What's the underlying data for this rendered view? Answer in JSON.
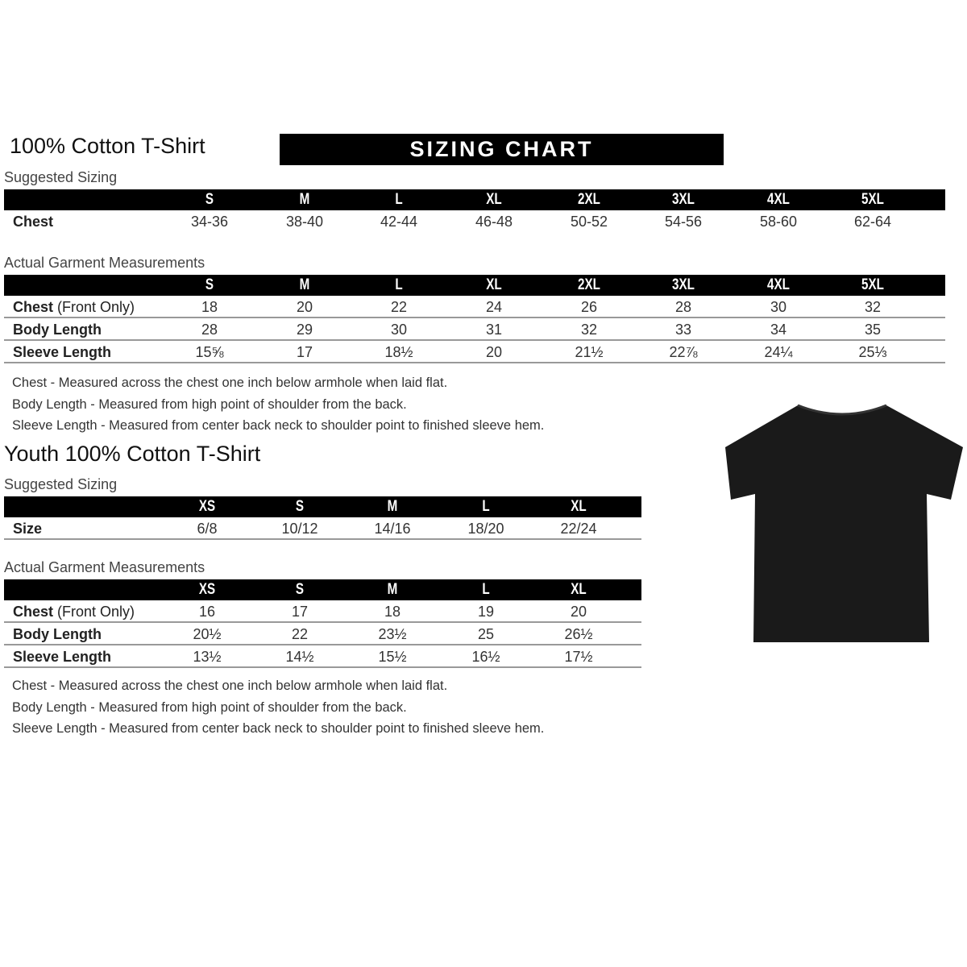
{
  "adult": {
    "title": "100% Cotton T-Shirt",
    "banner": "SIZING CHART",
    "suggested_label": "Suggested Sizing",
    "sizes": [
      "S",
      "M",
      "L",
      "XL",
      "2XL",
      "3XL",
      "4XL",
      "5XL"
    ],
    "suggested_rows": [
      {
        "label": "Chest",
        "values": [
          "34-36",
          "38-40",
          "42-44",
          "46-48",
          "50-52",
          "54-56",
          "58-60",
          "62-64"
        ]
      }
    ],
    "actual_label": "Actual Garment Measurements",
    "actual_rows": [
      {
        "label": "Chest",
        "label_suffix": "(Front Only)",
        "values": [
          "18",
          "20",
          "22",
          "24",
          "26",
          "28",
          "30",
          "32"
        ]
      },
      {
        "label": "Body Length",
        "label_suffix": "",
        "values": [
          "28",
          "29",
          "30",
          "31",
          "32",
          "33",
          "34",
          "35"
        ]
      },
      {
        "label": "Sleeve Length",
        "label_suffix": "",
        "values": [
          "15⅝",
          "17",
          "18½",
          "20",
          "21½",
          "22⅞",
          "24¼",
          "25⅓"
        ]
      }
    ],
    "notes": [
      "Chest - Measured across the chest one inch below armhole when laid flat.",
      "Body Length - Measured from high point of shoulder from the back.",
      "Sleeve Length - Measured from center back neck to shoulder point to finished sleeve hem."
    ]
  },
  "youth": {
    "title": "Youth 100% Cotton T-Shirt",
    "suggested_label": "Suggested Sizing",
    "sizes": [
      "XS",
      "S",
      "M",
      "L",
      "XL"
    ],
    "suggested_rows": [
      {
        "label": "Size",
        "values": [
          "6/8",
          "10/12",
          "14/16",
          "18/20",
          "22/24"
        ]
      }
    ],
    "actual_label": "Actual Garment Measurements",
    "actual_rows": [
      {
        "label": "Chest",
        "label_suffix": "(Front Only)",
        "values": [
          "16",
          "17",
          "18",
          "19",
          "20"
        ]
      },
      {
        "label": "Body Length",
        "label_suffix": "",
        "values": [
          "20½",
          "22",
          "23½",
          "25",
          "26½"
        ]
      },
      {
        "label": "Sleeve Length",
        "label_suffix": "",
        "values": [
          "13½",
          "14½",
          "15½",
          "16½",
          "17½"
        ]
      }
    ],
    "notes": [
      "Chest - Measured across the chest one inch below armhole when laid flat.",
      "Body Length - Measured from high point of shoulder from the back.",
      "Sleeve Length - Measured from center back neck to shoulder point to finished sleeve hem."
    ]
  },
  "image": {
    "icon": "tshirt-icon",
    "color": "#1a1a1a"
  }
}
